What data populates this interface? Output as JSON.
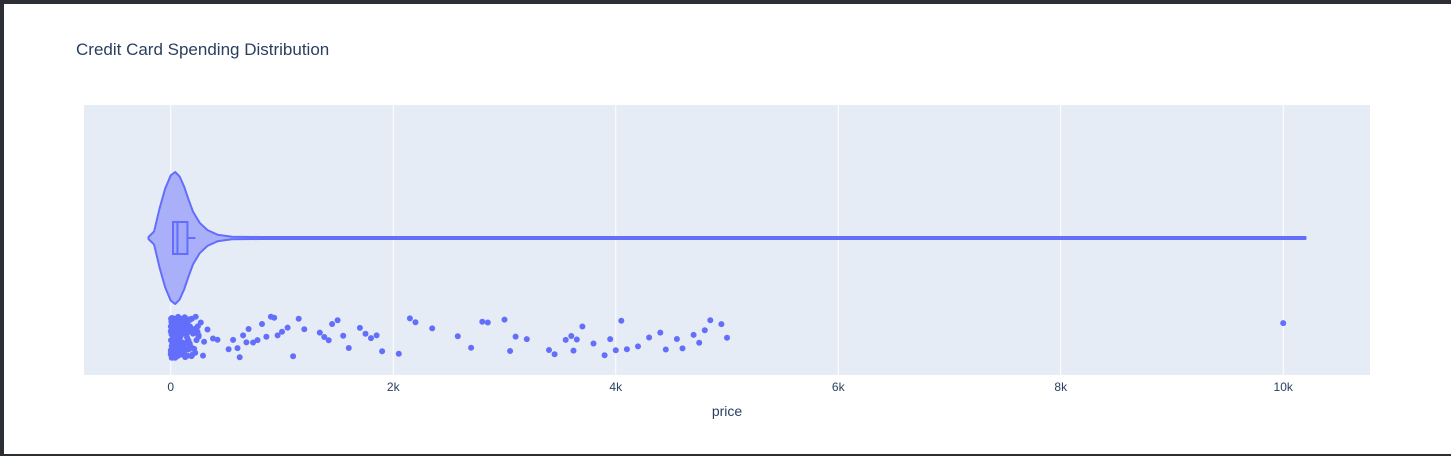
{
  "chart_data": {
    "type": "violin",
    "title": "Credit Card Spending Distribution",
    "xlabel": "price",
    "ylabel": "",
    "xlim": [
      -780,
      10780
    ],
    "x_ticks": [
      0,
      2000,
      4000,
      6000,
      8000,
      10000
    ],
    "x_tick_labels": [
      "0",
      "2k",
      "4k",
      "6k",
      "8k",
      "10k"
    ],
    "grid": true,
    "orientation": "horizontal",
    "box": {
      "q1": 20,
      "median": 60,
      "q3": 150,
      "whisker_high": 150
    },
    "violin_range": [
      -200,
      10200
    ],
    "density": [
      [
        -200,
        0.0
      ],
      [
        -150,
        0.1
      ],
      [
        -100,
        0.45
      ],
      [
        -50,
        0.75
      ],
      [
        0,
        0.95
      ],
      [
        40,
        1.0
      ],
      [
        80,
        0.93
      ],
      [
        120,
        0.78
      ],
      [
        160,
        0.58
      ],
      [
        200,
        0.4
      ],
      [
        260,
        0.23
      ],
      [
        330,
        0.12
      ],
      [
        420,
        0.05
      ],
      [
        550,
        0.02
      ],
      [
        800,
        0.01
      ],
      [
        1500,
        0.005
      ],
      [
        10200,
        0.005
      ]
    ],
    "points": [
      5,
      8,
      10,
      12,
      15,
      18,
      20,
      22,
      25,
      28,
      30,
      33,
      35,
      38,
      40,
      42,
      45,
      48,
      50,
      52,
      55,
      58,
      60,
      62,
      65,
      68,
      70,
      72,
      75,
      78,
      80,
      85,
      90,
      95,
      100,
      105,
      110,
      115,
      120,
      125,
      130,
      135,
      140,
      150,
      160,
      170,
      180,
      190,
      200,
      210,
      220,
      240,
      250,
      270,
      290,
      300,
      330,
      380,
      420,
      520,
      560,
      600,
      620,
      650,
      680,
      700,
      740,
      780,
      820,
      860,
      900,
      930,
      960,
      1000,
      1050,
      1100,
      1150,
      1200,
      1340,
      1380,
      1420,
      1450,
      1500,
      1550,
      1600,
      1700,
      1750,
      1800,
      1850,
      1900,
      2050,
      2150,
      2200,
      2350,
      2580,
      2700,
      2800,
      2850,
      3000,
      3050,
      3100,
      3200,
      3400,
      3450,
      3550,
      3600,
      3620,
      3650,
      3700,
      3800,
      3900,
      3950,
      4000,
      4050,
      4100,
      4200,
      4300,
      4400,
      4450,
      4550,
      4600,
      4700,
      4750,
      4800,
      4850,
      4950,
      5000,
      10000
    ],
    "series": [
      {
        "values_ref": "points"
      }
    ],
    "colors": {
      "violin_line": "#636efa",
      "violin_fill": "#a3a9f9",
      "points": "#636efa",
      "plot_bg": "#e5ecf6",
      "grid": "#ffffff",
      "text": "#2a3f5f"
    }
  }
}
